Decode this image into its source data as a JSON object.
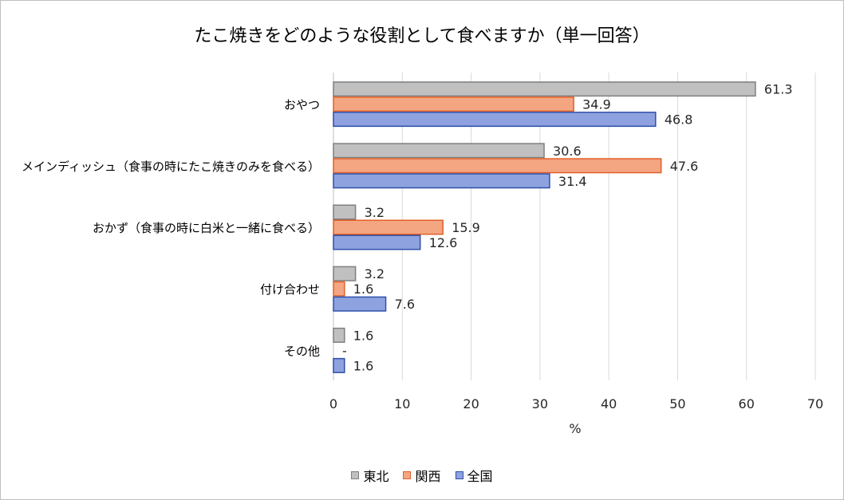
{
  "chart_data": {
    "type": "bar",
    "orientation": "horizontal",
    "title": "たこ焼きをどのような役割として食べますか（単一回答）",
    "xlabel": "%",
    "ylabel": "",
    "xlim": [
      0,
      70
    ],
    "xticks": [
      "0",
      "10",
      "20",
      "30",
      "40",
      "50",
      "60",
      "70"
    ],
    "grid": true,
    "legend_position": "bottom",
    "categories": [
      "おやつ",
      "メインディッシュ（食事の時にたこ焼きのみを食べる）",
      "おかず（食事の時に白米と一緒に食べる）",
      "付け合わせ",
      "その他"
    ],
    "series": [
      {
        "name": "東北",
        "values": [
          61.3,
          30.6,
          3.2,
          3.2,
          1.6
        ],
        "labels": [
          "61.3",
          "30.6",
          "3.2",
          "3.2",
          "1.6"
        ],
        "color": "#c0c0c0",
        "stroke": "#7f7f7f"
      },
      {
        "name": "関西",
        "values": [
          34.9,
          47.6,
          15.9,
          1.6,
          0
        ],
        "labels": [
          "34.9",
          "47.6",
          "15.9",
          "1.6",
          "-"
        ],
        "color": "#f4a582",
        "stroke": "#e0602a"
      },
      {
        "name": "全国",
        "values": [
          46.8,
          31.4,
          12.6,
          7.6,
          1.6
        ],
        "labels": [
          "46.8",
          "31.4",
          "12.6",
          "7.6",
          "1.6"
        ],
        "color": "#8ea2df",
        "stroke": "#2f4fa8"
      }
    ]
  }
}
